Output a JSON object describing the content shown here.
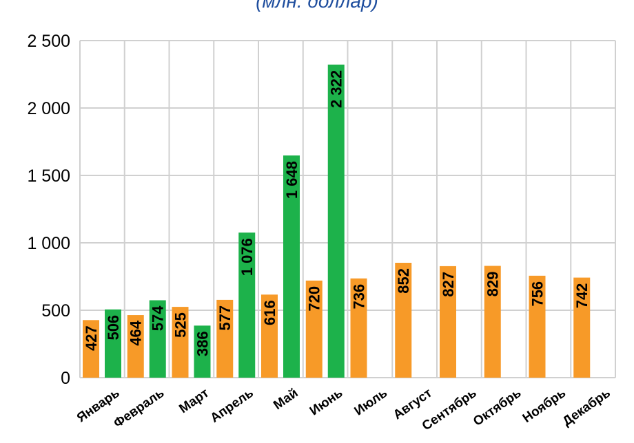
{
  "subtitle": "(млн. доллар)",
  "colors": {
    "series_a": "#f79a28",
    "series_b": "#1db24b",
    "grid": "#d0d0d0"
  },
  "chart_data": {
    "type": "bar",
    "title": "",
    "subtitle": "(млн. доллар)",
    "xlabel": "",
    "ylabel": "",
    "ylim": [
      0,
      2500
    ],
    "yticks": [
      0,
      500,
      1000,
      1500,
      2000,
      2500
    ],
    "ytick_labels": [
      "0",
      "500",
      "1 000",
      "1 500",
      "2 000",
      "2 500"
    ],
    "grid": true,
    "legend": "none",
    "categories": [
      "Январь",
      "Февраль",
      "Март",
      "Апрель",
      "Май",
      "Июнь",
      "Июль",
      "Август",
      "Сентябрь",
      "Октябрь",
      "Ноябрь",
      "Декабрь"
    ],
    "series": [
      {
        "color": "#f79a28",
        "values": [
          427,
          464,
          525,
          577,
          616,
          720,
          736,
          852,
          827,
          829,
          756,
          742
        ],
        "labels": [
          "427",
          "464",
          "525",
          "577",
          "616",
          "720",
          "736",
          "852",
          "827",
          "829",
          "756",
          "742"
        ]
      },
      {
        "color": "#1db24b",
        "values": [
          506,
          574,
          386,
          1076,
          1648,
          2322,
          null,
          null,
          null,
          null,
          null,
          null
        ],
        "labels": [
          "506",
          "574",
          "386",
          "1 076",
          "1 648",
          "2 322",
          "",
          "",
          "",
          "",
          "",
          ""
        ]
      }
    ]
  }
}
